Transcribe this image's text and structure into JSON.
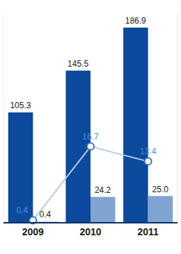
{
  "chart_data": {
    "type": "bar",
    "categories": [
      "2009",
      "2010",
      "2011"
    ],
    "series": [
      {
        "type": "bar",
        "color": "#0b4a9c",
        "values": [
          105.3,
          145.5,
          186.9
        ]
      },
      {
        "type": "bar",
        "color": "#7fa4d0",
        "values": [
          0.4,
          24.2,
          25.0
        ],
        "value_labels": [
          "0.4",
          "24.2",
          "25.0"
        ]
      },
      {
        "type": "line",
        "color": "#b7cbe6",
        "marker": "circle",
        "axis": "y2",
        "values": [
          0.4,
          16.7,
          13.4
        ]
      }
    ],
    "ylim": [
      0,
      200
    ],
    "yticks": [],
    "y2lim": [
      0,
      46
    ],
    "y2ticks": [],
    "data_labels": true,
    "tick_labels": "x",
    "grid": false
  }
}
